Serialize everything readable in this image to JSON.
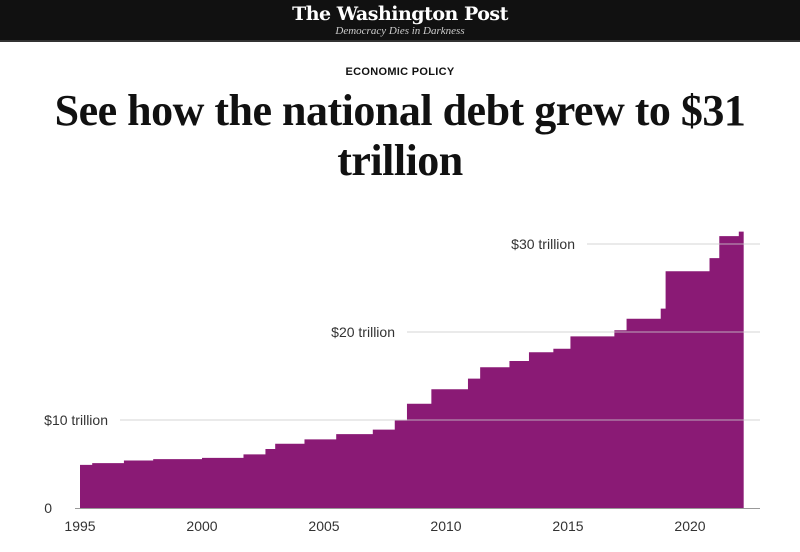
{
  "header": {
    "logo": "The Washington Post",
    "tagline": "Democracy Dies in Darkness"
  },
  "article": {
    "kicker": "ECONOMIC POLICY",
    "title": "See how the national debt grew to $31 trillion"
  },
  "chart_data": {
    "type": "area",
    "title": "",
    "xlabel": "",
    "ylabel": "",
    "color": "#8a1a75",
    "xlim": [
      1995,
      2022.2
    ],
    "ylim": [
      0,
      31.5
    ],
    "x_ticks": [
      {
        "value": 1995,
        "label": "1995"
      },
      {
        "value": 2000,
        "label": "2000"
      },
      {
        "value": 2005,
        "label": "2005"
      },
      {
        "value": 2010,
        "label": "2010"
      },
      {
        "value": 2015,
        "label": "2015"
      },
      {
        "value": 2020,
        "label": "2020"
      }
    ],
    "y_ticks": [
      {
        "value": 0,
        "label": "0"
      },
      {
        "value": 10,
        "label": "$10 trillion"
      },
      {
        "value": 20,
        "label": "$20 trillion"
      },
      {
        "value": 30,
        "label": "$30 trillion"
      }
    ],
    "step_start_years": [
      1995.0,
      1995.5,
      1996.8,
      1998.0,
      2000.0,
      2001.7,
      2002.6,
      2003.0,
      2004.2,
      2005.5,
      2007.0,
      2007.9,
      2008.4,
      2009.4,
      2010.9,
      2011.4,
      2012.6,
      2013.4,
      2014.4,
      2015.1,
      2016.9,
      2017.4,
      2018.8,
      2019.0,
      2020.8,
      2021.2,
      2022.0
    ],
    "values_trillions": [
      4.9,
      5.1,
      5.4,
      5.55,
      5.7,
      6.1,
      6.7,
      7.3,
      7.8,
      8.4,
      8.9,
      9.95,
      11.85,
      13.5,
      14.7,
      16.0,
      16.7,
      17.7,
      18.1,
      19.5,
      20.2,
      21.5,
      22.65,
      26.9,
      28.4,
      30.9,
      31.4
    ],
    "end_year": 2022.2
  }
}
